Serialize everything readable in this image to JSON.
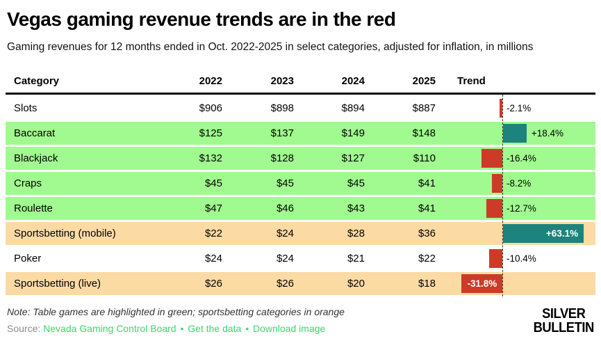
{
  "title": "Vegas gaming revenue trends are in the red",
  "subtitle": "Gaming revenues for 12 months ended in Oct. 2022-2025 in select categories, adjusted for inflation, in millions",
  "table": {
    "columns": [
      "Category",
      "2022",
      "2023",
      "2024",
      "2025",
      "Trend"
    ],
    "rows": [
      {
        "category": "Slots",
        "values": [
          "$906",
          "$898",
          "$894",
          "$887"
        ],
        "trend_pct": -2.1,
        "trend_label": "-2.1%",
        "highlight": "none"
      },
      {
        "category": "Baccarat",
        "values": [
          "$125",
          "$137",
          "$149",
          "$148"
        ],
        "trend_pct": 18.4,
        "trend_label": "+18.4%",
        "highlight": "green"
      },
      {
        "category": "Blackjack",
        "values": [
          "$132",
          "$128",
          "$127",
          "$110"
        ],
        "trend_pct": -16.4,
        "trend_label": "-16.4%",
        "highlight": "green"
      },
      {
        "category": "Craps",
        "values": [
          "$45",
          "$45",
          "$45",
          "$41"
        ],
        "trend_pct": -8.2,
        "trend_label": "-8.2%",
        "highlight": "green"
      },
      {
        "category": "Roulette",
        "values": [
          "$47",
          "$46",
          "$43",
          "$41"
        ],
        "trend_pct": -12.7,
        "trend_label": "-12.7%",
        "highlight": "green"
      },
      {
        "category": "Sportsbetting (mobile)",
        "values": [
          "$22",
          "$24",
          "$28",
          "$36"
        ],
        "trend_pct": 63.1,
        "trend_label": "+63.1%",
        "highlight": "orange"
      },
      {
        "category": "Poker",
        "values": [
          "$24",
          "$24",
          "$21",
          "$22"
        ],
        "trend_pct": -10.4,
        "trend_label": "-10.4%",
        "highlight": "none"
      },
      {
        "category": "Sportsbetting (live)",
        "values": [
          "$26",
          "$26",
          "$20",
          "$18"
        ],
        "trend_pct": -31.8,
        "trend_label": "-31.8%",
        "highlight": "orange"
      }
    ]
  },
  "note": "Note: Table games are highlighted in green; sportsbetting categories in orange",
  "source": {
    "prefix": "Source:",
    "separator": "•",
    "links": [
      "Nevada Gaming Control Board",
      "Get the data",
      "Download image"
    ]
  },
  "logo": {
    "line1": "SILVER",
    "line2": "BULLETIN"
  },
  "colors": {
    "bar_positive": "#1d837c",
    "bar_negative": "#cd3a28",
    "row_green": "#a0fa8f",
    "row_orange": "#fbdaa4",
    "row_none": "#ffffff",
    "link_green": "#3fd56c",
    "zero_line": "#333333"
  },
  "chart_data": {
    "type": "table",
    "title": "Vegas gaming revenue trends are in the red",
    "subtitle": "Gaming revenues for 12 months ended in Oct. 2022-2025 in select categories, adjusted for inflation, in millions",
    "categories": [
      "Slots",
      "Baccarat",
      "Blackjack",
      "Craps",
      "Roulette",
      "Sportsbetting (mobile)",
      "Poker",
      "Sportsbetting (live)"
    ],
    "series": [
      {
        "name": "2022",
        "values": [
          906,
          125,
          132,
          45,
          47,
          22,
          24,
          26
        ]
      },
      {
        "name": "2023",
        "values": [
          898,
          137,
          128,
          45,
          46,
          24,
          24,
          26
        ]
      },
      {
        "name": "2024",
        "values": [
          894,
          149,
          127,
          45,
          43,
          28,
          21,
          20
        ]
      },
      {
        "name": "2025",
        "values": [
          887,
          148,
          110,
          41,
          41,
          36,
          22,
          18
        ]
      }
    ],
    "trend_bar": {
      "type": "bar",
      "orientation": "horizontal",
      "values_pct": [
        -2.1,
        18.4,
        -16.4,
        -8.2,
        -12.7,
        63.1,
        -10.4,
        -31.8
      ],
      "positive_color": "#1d837c",
      "negative_color": "#cd3a28",
      "zero_line": "dashed"
    },
    "row_highlight": [
      "none",
      "green",
      "green",
      "green",
      "green",
      "orange",
      "none",
      "orange"
    ],
    "units": "millions USD, inflation adjusted"
  }
}
